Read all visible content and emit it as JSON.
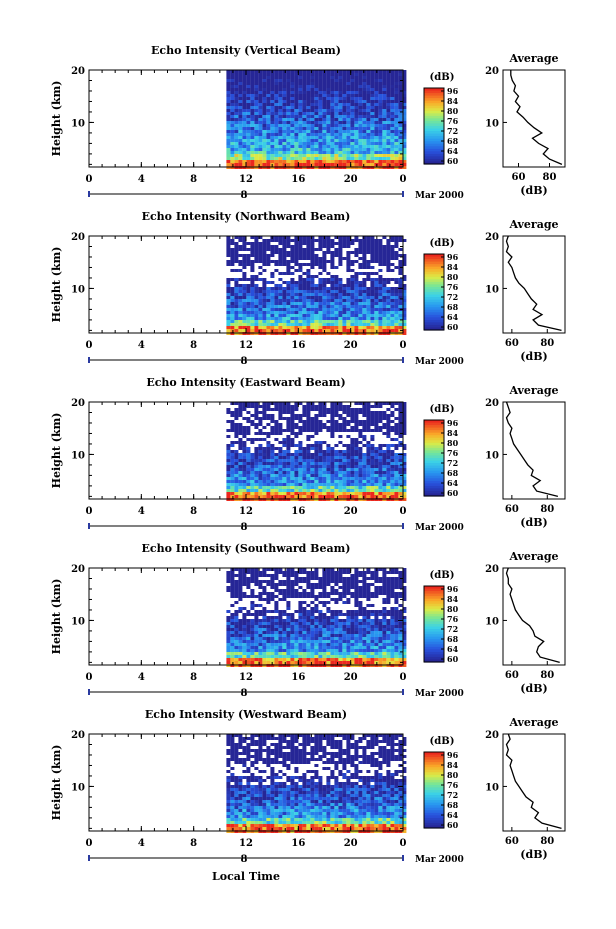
{
  "figure": {
    "xlabel": "Local Time",
    "date_label": "Mar 2000",
    "date_marker": "8",
    "ylabel": "Height (km)",
    "cbar_unit": "(dB)",
    "avg_title": "Average",
    "avg_xlabel": "(dB)"
  },
  "chart_data": [
    {
      "type": "heatmap",
      "title": "Echo Intensity (Vertical Beam)",
      "xlabel": "Local Time",
      "ylabel": "Height (km)",
      "x_ticks": [
        "0",
        "4",
        "8",
        "12",
        "16",
        "20",
        "0"
      ],
      "x_range": [
        0,
        24
      ],
      "y_ticks": [
        "10",
        "20"
      ],
      "y_range": [
        1.5,
        20
      ],
      "data_start_hour": 10.5,
      "colorbar": {
        "unit": "(dB)",
        "ticks": [
          "96",
          "84",
          "80",
          "76",
          "72",
          "68",
          "64",
          "60"
        ],
        "range": [
          60,
          96
        ]
      },
      "average_profile": {
        "title": "Average",
        "xlabel": "(dB)",
        "x_ticks": [
          "60",
          "80"
        ],
        "x_range": [
          50,
          90
        ],
        "height_km": [
          2,
          3,
          4,
          5,
          6,
          7,
          8,
          9,
          10,
          11,
          12,
          13,
          14,
          15,
          16,
          17,
          18,
          19,
          20
        ],
        "db": [
          88,
          80,
          76,
          79,
          73,
          69,
          75,
          70,
          66,
          63,
          59,
          61,
          58,
          60,
          57,
          58,
          56,
          55,
          55
        ]
      }
    },
    {
      "type": "heatmap",
      "title": "Echo Intensity (Northward Beam)",
      "xlabel": "Local Time",
      "ylabel": "Height (km)",
      "x_ticks": [
        "0",
        "4",
        "8",
        "12",
        "16",
        "20",
        "0"
      ],
      "x_range": [
        0,
        24
      ],
      "y_ticks": [
        "10",
        "20"
      ],
      "y_range": [
        1.5,
        20
      ],
      "data_start_hour": 10.5,
      "colorbar": {
        "unit": "(dB)",
        "ticks": [
          "96",
          "84",
          "80",
          "76",
          "72",
          "68",
          "64",
          "60"
        ],
        "range": [
          60,
          96
        ]
      },
      "average_profile": {
        "title": "Average",
        "xlabel": "(dB)",
        "x_ticks": [
          "60",
          "80"
        ],
        "x_range": [
          55,
          90
        ],
        "height_km": [
          2,
          3,
          4,
          5,
          6,
          7,
          8,
          9,
          10,
          11,
          12,
          13,
          14,
          15,
          16,
          17,
          18,
          19,
          20
        ],
        "db": [
          88,
          75,
          72,
          77,
          72,
          74,
          71,
          69,
          67,
          64,
          62,
          61,
          60,
          58,
          60,
          57,
          58,
          57,
          58
        ]
      }
    },
    {
      "type": "heatmap",
      "title": "Echo Intensity (Eastward Beam)",
      "xlabel": "Local Time",
      "ylabel": "Height (km)",
      "x_ticks": [
        "0",
        "4",
        "8",
        "12",
        "16",
        "20",
        "0"
      ],
      "x_range": [
        0,
        24
      ],
      "y_ticks": [
        "10",
        "20"
      ],
      "y_range": [
        1.5,
        20
      ],
      "data_start_hour": 10.5,
      "colorbar": {
        "unit": "(dB)",
        "ticks": [
          "96",
          "84",
          "80",
          "76",
          "72",
          "68",
          "64",
          "60"
        ],
        "range": [
          60,
          96
        ]
      },
      "average_profile": {
        "title": "Average",
        "xlabel": "(dB)",
        "x_ticks": [
          "60",
          "80"
        ],
        "x_range": [
          55,
          90
        ],
        "height_km": [
          2,
          3,
          4,
          5,
          6,
          7,
          8,
          9,
          10,
          11,
          12,
          13,
          14,
          15,
          16,
          17,
          18,
          19,
          20
        ],
        "db": [
          86,
          74,
          72,
          76,
          71,
          72,
          69,
          67,
          65,
          63,
          61,
          60,
          59,
          60,
          58,
          57,
          59,
          58,
          57
        ]
      }
    },
    {
      "type": "heatmap",
      "title": "Echo Intensity (Southward Beam)",
      "xlabel": "Local Time",
      "ylabel": "Height (km)",
      "x_ticks": [
        "0",
        "4",
        "8",
        "12",
        "16",
        "20",
        "0"
      ],
      "x_range": [
        0,
        24
      ],
      "y_ticks": [
        "10",
        "20"
      ],
      "y_range": [
        1.5,
        20
      ],
      "data_start_hour": 10.5,
      "colorbar": {
        "unit": "(dB)",
        "ticks": [
          "96",
          "84",
          "80",
          "76",
          "72",
          "68",
          "64",
          "60"
        ],
        "range": [
          60,
          96
        ]
      },
      "average_profile": {
        "title": "Average",
        "xlabel": "(dB)",
        "x_ticks": [
          "60",
          "80"
        ],
        "x_range": [
          55,
          90
        ],
        "height_km": [
          2,
          3,
          4,
          5,
          6,
          7,
          8,
          9,
          10,
          11,
          12,
          13,
          14,
          15,
          16,
          17,
          18,
          19,
          20
        ],
        "db": [
          87,
          76,
          74,
          75,
          78,
          73,
          72,
          70,
          66,
          64,
          62,
          61,
          60,
          59,
          60,
          58,
          58,
          57,
          58
        ]
      }
    },
    {
      "type": "heatmap",
      "title": "Echo Intensity (Westward Beam)",
      "xlabel": "Local Time",
      "ylabel": "Height (km)",
      "x_ticks": [
        "0",
        "4",
        "8",
        "12",
        "16",
        "20",
        "0"
      ],
      "x_range": [
        0,
        24
      ],
      "y_ticks": [
        "10",
        "20"
      ],
      "y_range": [
        1.5,
        20
      ],
      "data_start_hour": 10.5,
      "colorbar": {
        "unit": "(dB)",
        "ticks": [
          "96",
          "84",
          "80",
          "76",
          "72",
          "68",
          "64",
          "60"
        ],
        "range": [
          60,
          96
        ]
      },
      "average_profile": {
        "title": "Average",
        "xlabel": "(dB)",
        "x_ticks": [
          "60",
          "80"
        ],
        "x_range": [
          55,
          90
        ],
        "height_km": [
          2,
          3,
          4,
          5,
          6,
          7,
          8,
          9,
          10,
          11,
          12,
          13,
          14,
          15,
          16,
          17,
          18,
          19,
          20
        ],
        "db": [
          88,
          77,
          73,
          75,
          71,
          72,
          68,
          66,
          64,
          62,
          61,
          60,
          59,
          60,
          57,
          58,
          57,
          59,
          58
        ]
      }
    }
  ]
}
